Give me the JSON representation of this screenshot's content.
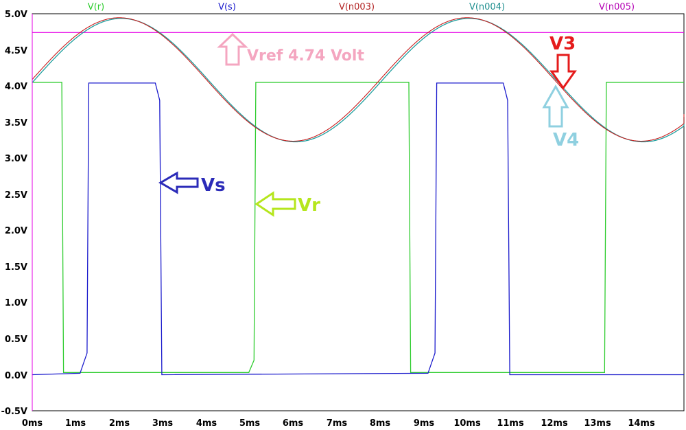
{
  "chart_data": {
    "type": "line",
    "xlabel": "",
    "ylabel": "",
    "xlim": [
      0,
      15.25
    ],
    "ylim": [
      -0.5,
      5.0
    ],
    "x_ticks": [
      "0ms",
      "1ms",
      "2ms",
      "3ms",
      "4ms",
      "5ms",
      "6ms",
      "7ms",
      "8ms",
      "9ms",
      "10ms",
      "11ms",
      "12ms",
      "13ms",
      "14ms"
    ],
    "y_ticks": [
      "5.0V",
      "4.5V",
      "4.0V",
      "3.5V",
      "3.0V",
      "2.5V",
      "2.0V",
      "1.5V",
      "1.0V",
      "0.5V",
      "0.0V",
      "-0.5V"
    ],
    "legend_position": "top",
    "series": [
      {
        "name": "V(r)",
        "color": "#2ecc2e",
        "x": [
          0,
          0.68,
          0.72,
          1.2,
          4.98,
          5.1,
          5.14,
          6.0,
          8.66,
          8.7,
          9.2,
          13.16,
          13.2,
          15.25
        ],
        "y": [
          4.05,
          4.05,
          0.03,
          0.03,
          0.03,
          0.2,
          4.05,
          4.05,
          4.05,
          0.03,
          0.03,
          0.03,
          4.05,
          4.05
        ]
      },
      {
        "name": "V(s)",
        "color": "#1a1acc",
        "x": [
          0,
          1.1,
          1.26,
          1.3,
          2.83,
          2.93,
          2.98,
          9.1,
          9.26,
          9.3,
          10.83,
          10.93,
          10.98,
          15.25
        ],
        "y": [
          0.0,
          0.02,
          0.3,
          4.04,
          4.04,
          3.8,
          0.0,
          0.02,
          0.3,
          4.04,
          4.04,
          3.8,
          0.0,
          0.0
        ]
      },
      {
        "name": "V(n003)",
        "color": "#c81e1e",
        "sine": {
          "offset": 4.09,
          "amplitude": 0.855,
          "period_ms": 8.0,
          "phase_ms": 0.0
        }
      },
      {
        "name": "V(n004)",
        "color": "#1f9e9e",
        "sine": {
          "offset": 4.08,
          "amplitude": 0.855,
          "period_ms": 8.0,
          "phase_ms": 0.05
        }
      },
      {
        "name": "V(n005)",
        "color": "#e600e6",
        "constant": 4.74
      }
    ]
  },
  "legend": [
    {
      "label": "V(r)",
      "color": "#2ecc2e"
    },
    {
      "label": "V(s)",
      "color": "#1a1acc"
    },
    {
      "label": "V(n003)",
      "color": "#b22222"
    },
    {
      "label": "V(n004)",
      "color": "#1f8f8f"
    },
    {
      "label": "V(n005)",
      "color": "#b400b4"
    }
  ],
  "annotations": {
    "vref": "Vref 4.74 Volt",
    "v3": "V3",
    "v4": "V4",
    "vs": "Vs",
    "vr": "Vr"
  },
  "colors": {
    "vref": "#f4a6c0",
    "v3": "#e51c1c",
    "v4": "#8fd0e0",
    "vs": "#2b2bb8",
    "vr": "#b5e61d"
  }
}
